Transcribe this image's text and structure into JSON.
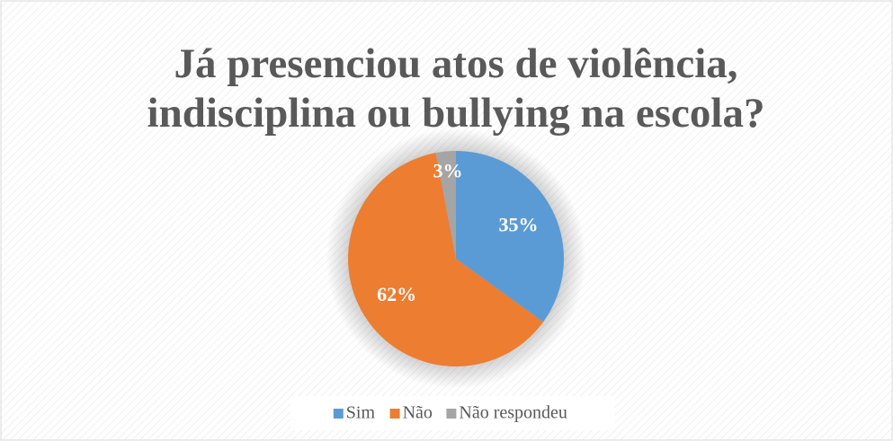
{
  "chart_data": {
    "type": "pie",
    "title": [
      "Já presenciou atos de violência,",
      "indisciplina ou bullying na escola?"
    ],
    "categories": [
      "Sim",
      "Não",
      "Não respondeu"
    ],
    "values": [
      35,
      62,
      3
    ],
    "value_labels": [
      "35%",
      "62%",
      "3%"
    ],
    "colors": [
      "#5b9bd5",
      "#ed7d31",
      "#a5a5a5"
    ],
    "legend": "bottom"
  }
}
